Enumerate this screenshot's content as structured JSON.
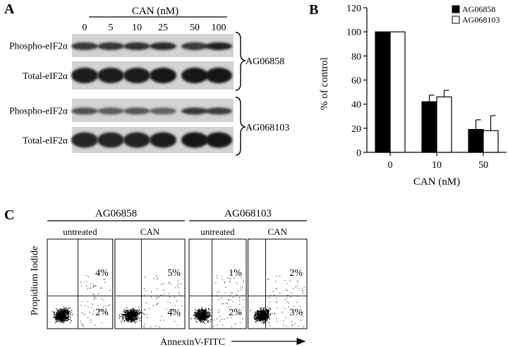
{
  "panel_a": {
    "label": "A",
    "dose_header": "CAN (nM)",
    "doses": [
      "0",
      "5",
      "10",
      "25",
      "50",
      "100"
    ],
    "rows": [
      {
        "label": "Phospho-eIF2α",
        "intensity": [
          0.72,
          0.75,
          0.78,
          0.82,
          0.7,
          0.9
        ]
      },
      {
        "label": "Total-eIF2α",
        "intensity": [
          0.95,
          0.95,
          0.95,
          0.97,
          1.0,
          1.0
        ]
      },
      {
        "label": "Phospho-eIF2α",
        "intensity": [
          0.55,
          0.45,
          0.5,
          0.4,
          0.72,
          0.7
        ]
      },
      {
        "label": "Total-eIF2α",
        "intensity": [
          0.85,
          0.85,
          0.88,
          0.92,
          1.0,
          1.0
        ]
      }
    ],
    "cell_lines": [
      "AG06858",
      "AG068103"
    ]
  },
  "panel_b": {
    "label": "B",
    "chart_data": {
      "type": "bar",
      "categories": [
        "0",
        "10",
        "50"
      ],
      "series": [
        {
          "name": "AG06858",
          "color": "#000000",
          "values": [
            100,
            42,
            19
          ],
          "errors": [
            0,
            5.5,
            8
          ]
        },
        {
          "name": "AG068103",
          "color": "#ffffff",
          "values": [
            100,
            46,
            18
          ],
          "errors": [
            0,
            5.5,
            12.5
          ]
        }
      ],
      "xlabel": "CAN (nM)",
      "ylabel": "% of control",
      "ylim": [
        0,
        120
      ],
      "yticks": [
        "0",
        "20",
        "40",
        "60",
        "80",
        "100",
        "120"
      ],
      "legend": "top-right",
      "grid": false
    }
  },
  "panel_c": {
    "label": "C",
    "groups": [
      {
        "name": "AG06858",
        "conditions": [
          "untreated",
          "CAN"
        ]
      },
      {
        "name": "AG068103",
        "conditions": [
          "untreated",
          "CAN"
        ]
      }
    ],
    "quadrants": [
      {
        "upper_right": "4%",
        "lower_right": "2%"
      },
      {
        "upper_right": "5%",
        "lower_right": "4%"
      },
      {
        "upper_right": "1%",
        "lower_right": "2%"
      },
      {
        "upper_right": "2%",
        "lower_right": "3%"
      }
    ],
    "ylabel": "Propidium Iodide",
    "xlabel": "AnnexinV-FITC"
  }
}
